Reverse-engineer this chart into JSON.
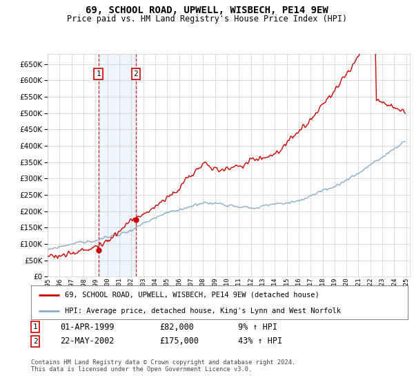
{
  "title": "69, SCHOOL ROAD, UPWELL, WISBECH, PE14 9EW",
  "subtitle": "Price paid vs. HM Land Registry's House Price Index (HPI)",
  "red_label": "69, SCHOOL ROAD, UPWELL, WISBECH, PE14 9EW (detached house)",
  "blue_label": "HPI: Average price, detached house, King's Lynn and West Norfolk",
  "transaction1_date": "01-APR-1999",
  "transaction1_price": 82000,
  "transaction1_pct": "9% ↑ HPI",
  "transaction2_date": "22-MAY-2002",
  "transaction2_price": 175000,
  "transaction2_pct": "43% ↑ HPI",
  "footer": "Contains HM Land Registry data © Crown copyright and database right 2024.\nThis data is licensed under the Open Government Licence v3.0.",
  "ylim": [
    0,
    680000
  ],
  "yticks": [
    0,
    50000,
    100000,
    150000,
    200000,
    250000,
    300000,
    350000,
    400000,
    450000,
    500000,
    550000,
    600000,
    650000
  ],
  "background_color": "#ffffff",
  "grid_color": "#cccccc",
  "red_color": "#cc0000",
  "blue_color": "#88aacc",
  "shade_color": "#ddeeff",
  "xstart": 1995,
  "xend": 2025,
  "t1_year": 1999.25,
  "t2_year": 2002.375,
  "t1_price": 82000,
  "t2_price": 175000
}
